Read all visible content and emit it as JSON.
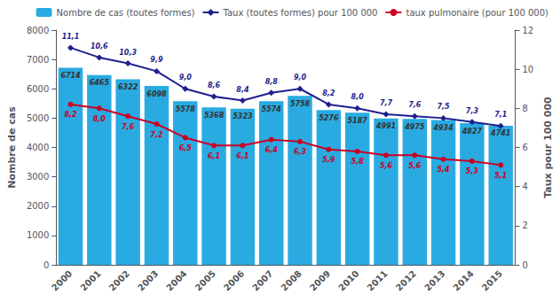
{
  "chart_data": {
    "type": "bar",
    "categories": [
      "2000",
      "2001",
      "2002",
      "2003",
      "2004",
      "2005",
      "2006",
      "2007",
      "2008",
      "2009",
      "2010",
      "2011",
      "2012",
      "2013",
      "2014",
      "2015"
    ],
    "series": [
      {
        "name": "Nombre de cas (toutes formes)",
        "type": "bar",
        "color": "#29ABE2",
        "values": [
          6714,
          6465,
          6322,
          6098,
          5578,
          5368,
          5323,
          5574,
          5758,
          5276,
          5187,
          4991,
          4975,
          4934,
          4827,
          4741
        ],
        "data_labels": true
      },
      {
        "name": "Taux (toutes formes) pour 100 000",
        "type": "line",
        "axis": "y2",
        "color": "#1F1F8F",
        "marker": "diamond",
        "values": [
          11.1,
          10.6,
          10.3,
          9.9,
          9.0,
          8.6,
          8.4,
          8.8,
          9.0,
          8.2,
          8.0,
          7.7,
          7.6,
          7.5,
          7.3,
          7.1
        ],
        "value_labels": [
          "11,1",
          "10,6",
          "10,3",
          "9,9",
          "9,0",
          "8,6",
          "8,4",
          "8,8",
          "9,0",
          "8,2",
          "8,0",
          "7,7",
          "7,6",
          "7,5",
          "7,3",
          "7,1"
        ],
        "data_labels": true
      },
      {
        "name": "taux pulmonaire (pour 100 000)",
        "type": "line",
        "axis": "y2",
        "color": "#CC0022",
        "marker": "circle",
        "values": [
          8.2,
          8.0,
          7.6,
          7.2,
          6.5,
          6.1,
          6.1,
          6.4,
          6.3,
          5.9,
          5.8,
          5.6,
          5.6,
          5.4,
          5.3,
          5.1
        ],
        "value_labels": [
          "8,2",
          "8,0",
          "7,6",
          "7,2",
          "6,5",
          "6,1",
          "6,1",
          "6,4",
          "6,3",
          "5,9",
          "5,8",
          "5,6",
          "5,6",
          "5,4",
          "5,3",
          "5,1"
        ],
        "data_labels": true
      }
    ],
    "ylabel": "Nombre de cas",
    "y2label": "Taux pour 100 000",
    "ylim": [
      0,
      8000
    ],
    "yticks": [
      0,
      1000,
      2000,
      3000,
      4000,
      5000,
      6000,
      7000,
      8000
    ],
    "y2lim": [
      0,
      12
    ],
    "y2ticks": [
      0,
      2,
      4,
      6,
      8,
      10,
      12
    ],
    "grid": false,
    "legend": "upper right"
  }
}
